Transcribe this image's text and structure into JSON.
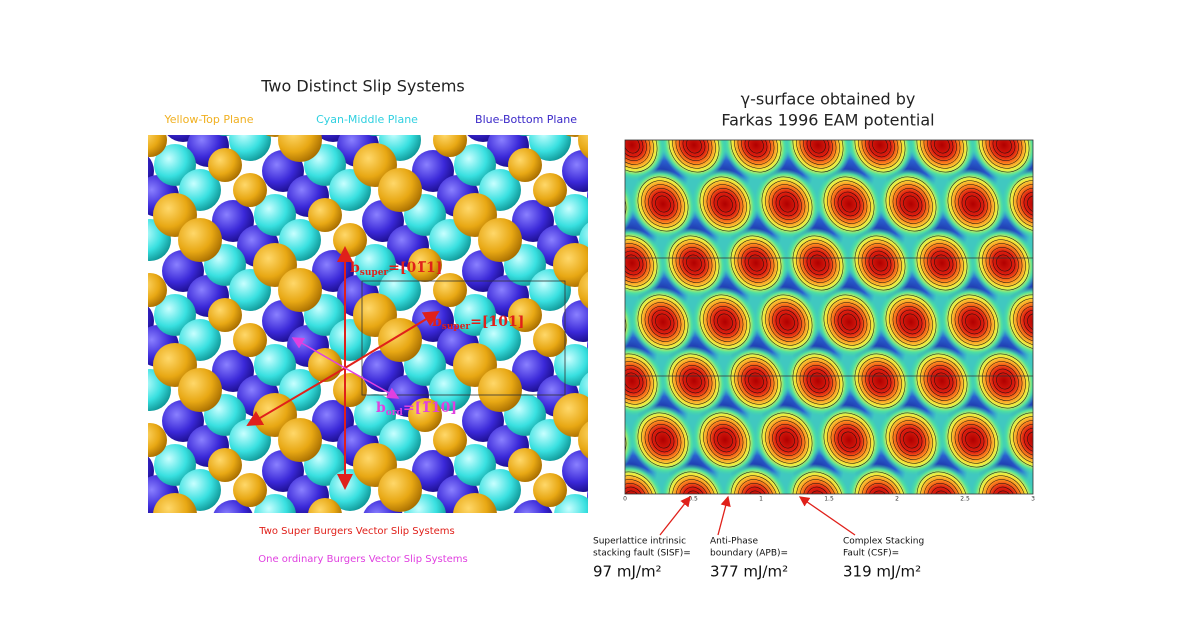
{
  "left": {
    "title": "Two Distinct Slip Systems",
    "planes": [
      "Yellow-Top Plane",
      "Cyan-Middle Plane",
      "Blue-Bottom Plane"
    ],
    "vectors": [
      {
        "symbol": "b",
        "sub": "super",
        "index": "=[01̅1]"
      },
      {
        "symbol": "b",
        "sub": "super",
        "index": "=[101]"
      },
      {
        "symbol": "b",
        "sub": "ord",
        "index": "=[1̅10]"
      }
    ],
    "captions": [
      "Two Super Burgers Vector Slip Systems",
      "One ordinary Burgers Vector Slip Systems"
    ]
  },
  "right": {
    "title": [
      "γ-surface obtained by",
      "Farkas 1996 EAM potential"
    ],
    "xticks": [
      "0",
      "0.5",
      "1",
      "1.5",
      "2",
      "2.5",
      "3"
    ],
    "faults": [
      {
        "label": [
          "Superlattice intrinsic",
          "stacking fault (SISF)="
        ],
        "energy": "97 mJ/m²"
      },
      {
        "label": [
          "Anti-Phase",
          "boundary (APB)="
        ],
        "energy": "377 mJ/m²"
      },
      {
        "label": [
          "Complex Stacking",
          "Fault (CSF)="
        ],
        "energy": "319 mJ/m²"
      }
    ]
  }
}
